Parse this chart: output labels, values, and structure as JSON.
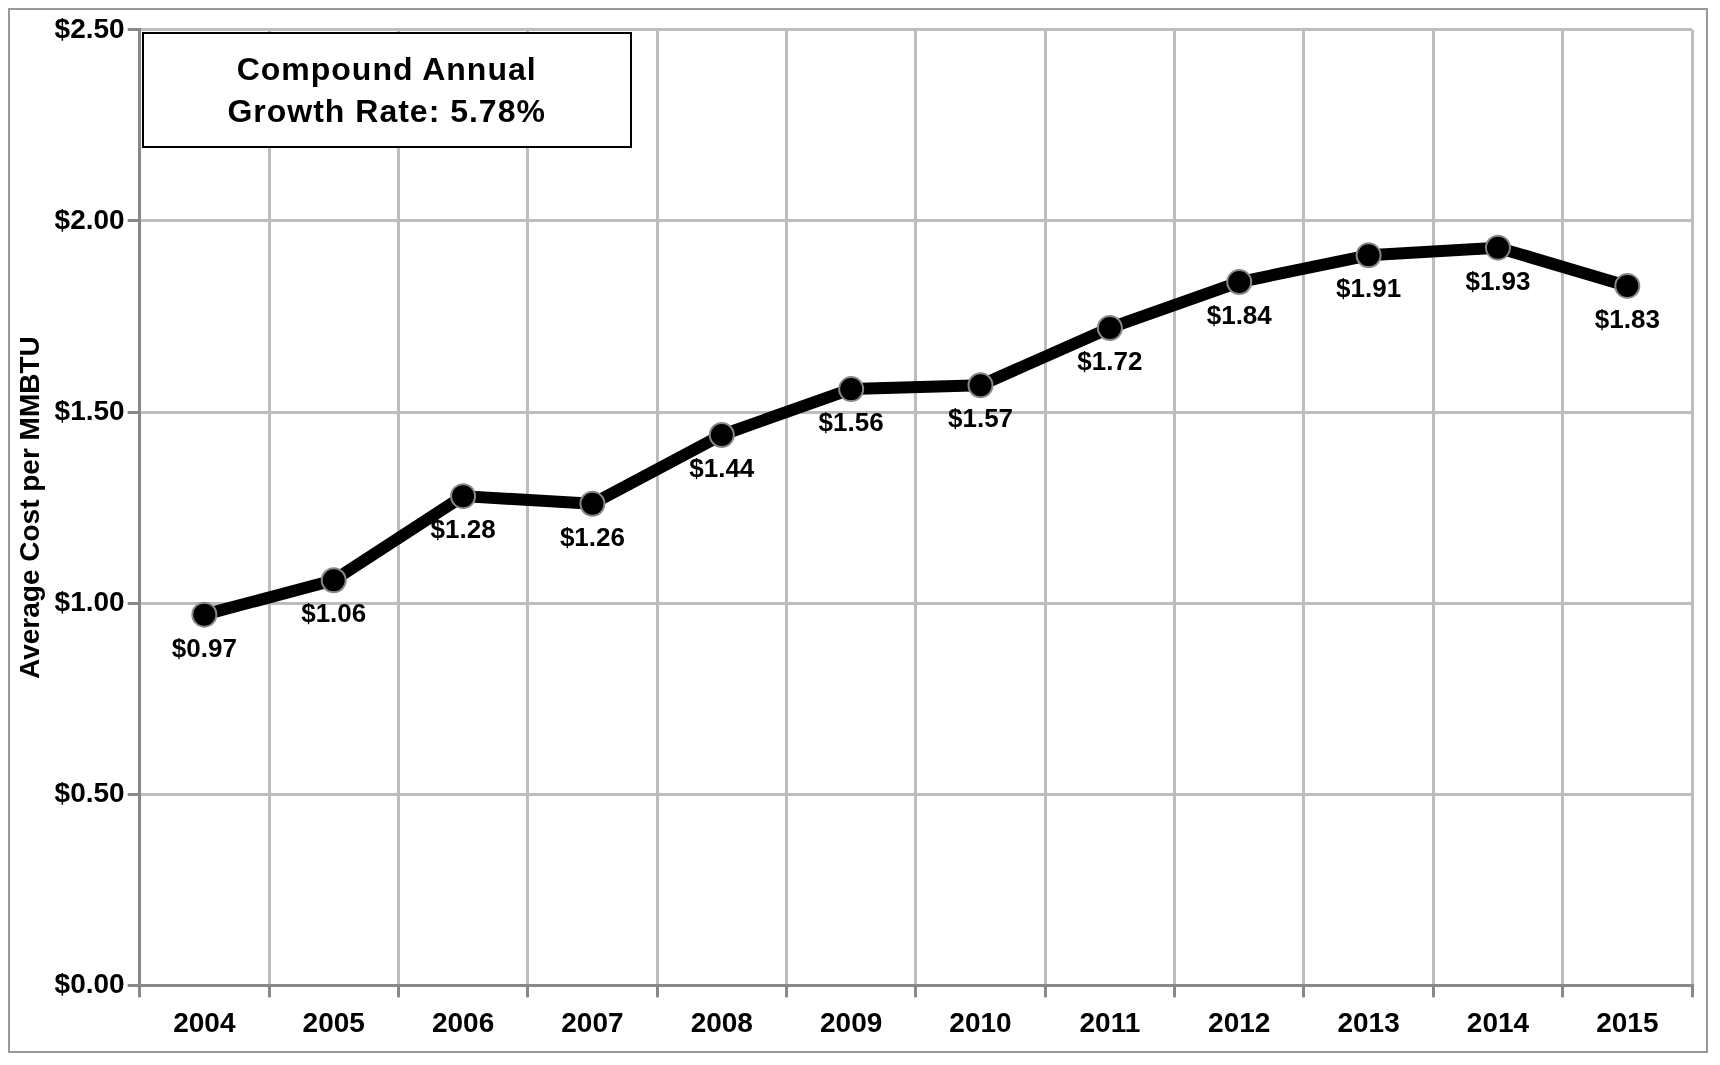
{
  "chart_data": {
    "type": "line",
    "ylabel": "Average Cost per MMBTU",
    "categories": [
      "2004",
      "2005",
      "2006",
      "2007",
      "2008",
      "2009",
      "2010",
      "2011",
      "2012",
      "2013",
      "2014",
      "2015"
    ],
    "series": [
      {
        "color": "#000000",
        "values": [
          0.97,
          1.06,
          1.28,
          1.26,
          1.44,
          1.56,
          1.57,
          1.72,
          1.84,
          1.91,
          1.93,
          1.83
        ],
        "value_labels": [
          "$0.97",
          "$1.06",
          "$1.28",
          "$1.26",
          "$1.44",
          "$1.56",
          "$1.57",
          "$1.72",
          "$1.84",
          "$1.91",
          "$1.93",
          "$1.83"
        ]
      }
    ],
    "ylim": [
      0,
      2.5
    ],
    "yticks": [
      {
        "value": 0,
        "label": "$0.00"
      },
      {
        "value": 0.5,
        "label": "$0.50"
      },
      {
        "value": 1,
        "label": "$1.00"
      },
      {
        "value": 1.5,
        "label": "$1.50"
      },
      {
        "value": 2,
        "label": "$2.00"
      },
      {
        "value": 2.5,
        "label": "$2.50"
      }
    ],
    "grid": true,
    "legend": false,
    "marker": "circle",
    "line_style": "solid",
    "annotations": [
      "Compound Annual Growth Rate: 5.78%"
    ]
  }
}
